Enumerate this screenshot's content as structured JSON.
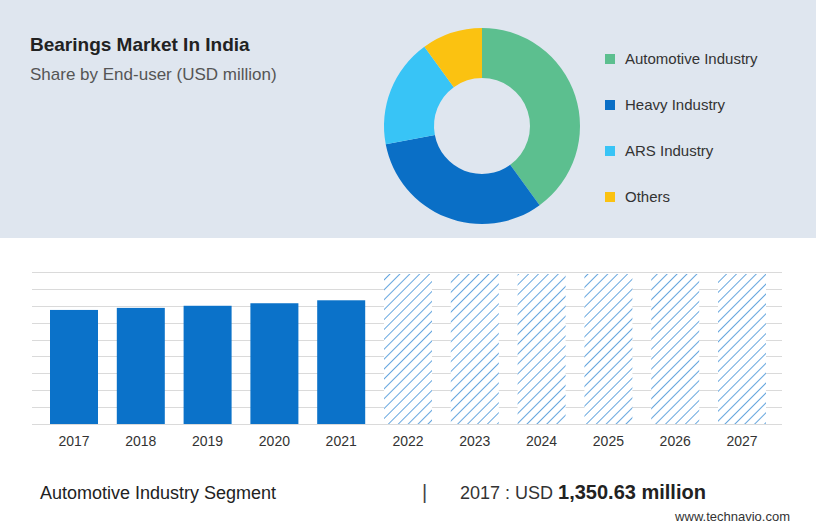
{
  "chart_data": [
    {
      "type": "donut",
      "title": "Bearings Market In India",
      "subtitle": "Share by End-user (USD million)",
      "categories": [
        "Automotive Industry",
        "Heavy Industry",
        "ARS Industry",
        "Others"
      ],
      "values": [
        40,
        32,
        18,
        10
      ],
      "colors": [
        "#5cbf8f",
        "#0a6fc6",
        "#38c4f6",
        "#fbc211"
      ],
      "legend": "right"
    },
    {
      "type": "bar",
      "categories": [
        "2017",
        "2018",
        "2019",
        "2020",
        "2021",
        "2022",
        "2023",
        "2024",
        "2025",
        "2026",
        "2027"
      ],
      "values": [
        1350.63,
        1375,
        1400,
        1430,
        1465,
        null,
        null,
        null,
        null,
        null,
        null
      ],
      "color": "#0b72c9",
      "ylim": [
        0,
        1800
      ],
      "yticks": [
        0,
        200,
        400,
        600,
        800,
        1000,
        1200,
        1400,
        1600,
        1800
      ],
      "grid": true,
      "tick_labels": "x",
      "annotations": [
        "Automotive Industry Segment",
        "|",
        "2017 : USD",
        "1,350.63 million",
        "www.technavio.com"
      ]
    }
  ]
}
